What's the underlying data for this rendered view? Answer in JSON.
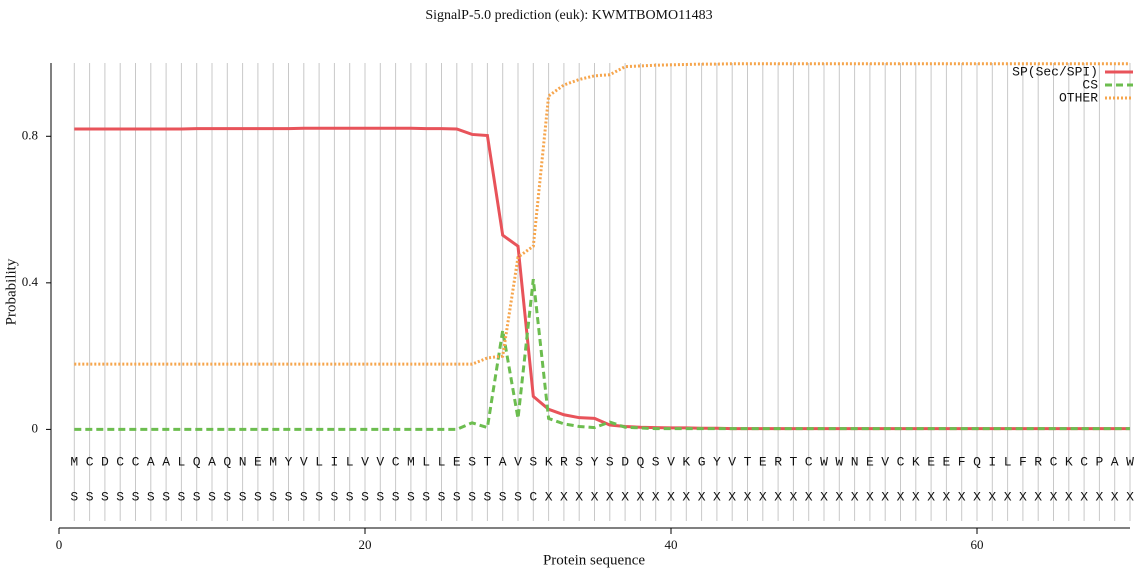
{
  "chart_data": {
    "type": "line",
    "title": "SignalP-5.0 prediction (euk):  KWMTBOMO11483",
    "x_label": "Protein sequence",
    "y_label": "Probability",
    "xlim": [
      0,
      70
    ],
    "xticks": [
      0,
      20,
      40,
      60
    ],
    "ylim": [
      -0.25,
      1.0
    ],
    "yticks": [
      0,
      0.4,
      0.8
    ],
    "grid": true,
    "legend": "top-right",
    "x": [
      1,
      2,
      3,
      4,
      5,
      6,
      7,
      8,
      9,
      10,
      11,
      12,
      13,
      14,
      15,
      16,
      17,
      18,
      19,
      20,
      21,
      22,
      23,
      24,
      25,
      26,
      27,
      28,
      29,
      30,
      31,
      32,
      33,
      34,
      35,
      36,
      37,
      38,
      39,
      40,
      41,
      42,
      43,
      44,
      45,
      46,
      47,
      48,
      49,
      50,
      51,
      52,
      53,
      54,
      55,
      56,
      57,
      58,
      59,
      60,
      61,
      62,
      63,
      64,
      65,
      66,
      67,
      68,
      69,
      70
    ],
    "sequence": [
      "M",
      "C",
      "D",
      "C",
      "C",
      "A",
      "A",
      "L",
      "Q",
      "A",
      "Q",
      "N",
      "E",
      "M",
      "Y",
      "V",
      "L",
      "I",
      "L",
      "V",
      "V",
      "C",
      "M",
      "L",
      "L",
      "E",
      "S",
      "T",
      "A",
      "V",
      "S",
      "K",
      "R",
      "S",
      "Y",
      "S",
      "D",
      "Q",
      "S",
      "V",
      "K",
      "G",
      "Y",
      "V",
      "T",
      "E",
      "R",
      "T",
      "C",
      "W",
      "W",
      "N",
      "E",
      "V",
      "C",
      "K",
      "E",
      "E",
      "F",
      "Q",
      "I",
      "L",
      "F",
      "R",
      "C",
      "K",
      "C",
      "P",
      "A",
      "W"
    ],
    "annotation": [
      "S",
      "S",
      "S",
      "S",
      "S",
      "S",
      "S",
      "S",
      "S",
      "S",
      "S",
      "S",
      "S",
      "S",
      "S",
      "S",
      "S",
      "S",
      "S",
      "S",
      "S",
      "S",
      "S",
      "S",
      "S",
      "S",
      "S",
      "S",
      "S",
      "S",
      "C",
      "X",
      "X",
      "X",
      "X",
      "X",
      "X",
      "X",
      "X",
      "X",
      "X",
      "X",
      "X",
      "X",
      "X",
      "X",
      "X",
      "X",
      "X",
      "X",
      "X",
      "X",
      "X",
      "X",
      "X",
      "X",
      "X",
      "X",
      "X",
      "X",
      "X",
      "X",
      "X",
      "X",
      "X",
      "X",
      "X",
      "X",
      "X",
      "X"
    ],
    "series": [
      {
        "name": "SP(Sec/SPI)",
        "color": "#e8535a",
        "dash": "solid",
        "values": [
          0.82,
          0.82,
          0.82,
          0.82,
          0.82,
          0.82,
          0.82,
          0.82,
          0.821,
          0.821,
          0.821,
          0.821,
          0.821,
          0.821,
          0.821,
          0.822,
          0.822,
          0.822,
          0.822,
          0.822,
          0.822,
          0.822,
          0.822,
          0.821,
          0.821,
          0.82,
          0.805,
          0.802,
          0.53,
          0.5,
          0.09,
          0.055,
          0.04,
          0.032,
          0.03,
          0.012,
          0.008,
          0.006,
          0.005,
          0.004,
          0.004,
          0.003,
          0.003,
          0.002,
          0.002,
          0.002,
          0.002,
          0.002,
          0.002,
          0.002,
          0.002,
          0.002,
          0.002,
          0.002,
          0.002,
          0.002,
          0.002,
          0.002,
          0.002,
          0.002,
          0.002,
          0.002,
          0.002,
          0.002,
          0.002,
          0.002,
          0.002,
          0.002,
          0.002,
          0.002
        ]
      },
      {
        "name": "CS",
        "color": "#6cbd4f",
        "dash": "dashed",
        "values": [
          0,
          0,
          0,
          0,
          0,
          0,
          0,
          0,
          0,
          0,
          0,
          0,
          0,
          0,
          0,
          0,
          0,
          0,
          0,
          0,
          0,
          0,
          0,
          0,
          0,
          0,
          0.018,
          0.005,
          0.27,
          0.03,
          0.41,
          0.03,
          0.015,
          0.008,
          0.005,
          0.02,
          0.006,
          0.004,
          0.002,
          0.002,
          0.002,
          0.002,
          0.002,
          0.002,
          0.002,
          0.002,
          0.002,
          0.002,
          0.002,
          0.002,
          0.002,
          0.002,
          0.002,
          0.002,
          0.002,
          0.002,
          0.002,
          0.002,
          0.002,
          0.002,
          0.002,
          0.002,
          0.002,
          0.002,
          0.002,
          0.002,
          0.002,
          0.002,
          0.002,
          0.002
        ]
      },
      {
        "name": "OTHER",
        "color": "#f6a54c",
        "dash": "dotted",
        "values": [
          0.178,
          0.178,
          0.178,
          0.178,
          0.178,
          0.178,
          0.178,
          0.178,
          0.178,
          0.178,
          0.178,
          0.178,
          0.178,
          0.178,
          0.178,
          0.178,
          0.178,
          0.178,
          0.178,
          0.178,
          0.178,
          0.178,
          0.178,
          0.178,
          0.178,
          0.178,
          0.178,
          0.195,
          0.2,
          0.47,
          0.5,
          0.91,
          0.94,
          0.955,
          0.965,
          0.968,
          0.99,
          0.992,
          0.994,
          0.995,
          0.996,
          0.997,
          0.997,
          0.998,
          0.998,
          0.998,
          0.998,
          0.998,
          0.998,
          0.998,
          0.998,
          0.998,
          0.998,
          0.998,
          0.998,
          0.998,
          0.998,
          0.998,
          0.998,
          0.998,
          0.998,
          0.998,
          0.998,
          0.998,
          0.998,
          0.998,
          0.998,
          0.998,
          0.998,
          0.998
        ]
      }
    ]
  }
}
